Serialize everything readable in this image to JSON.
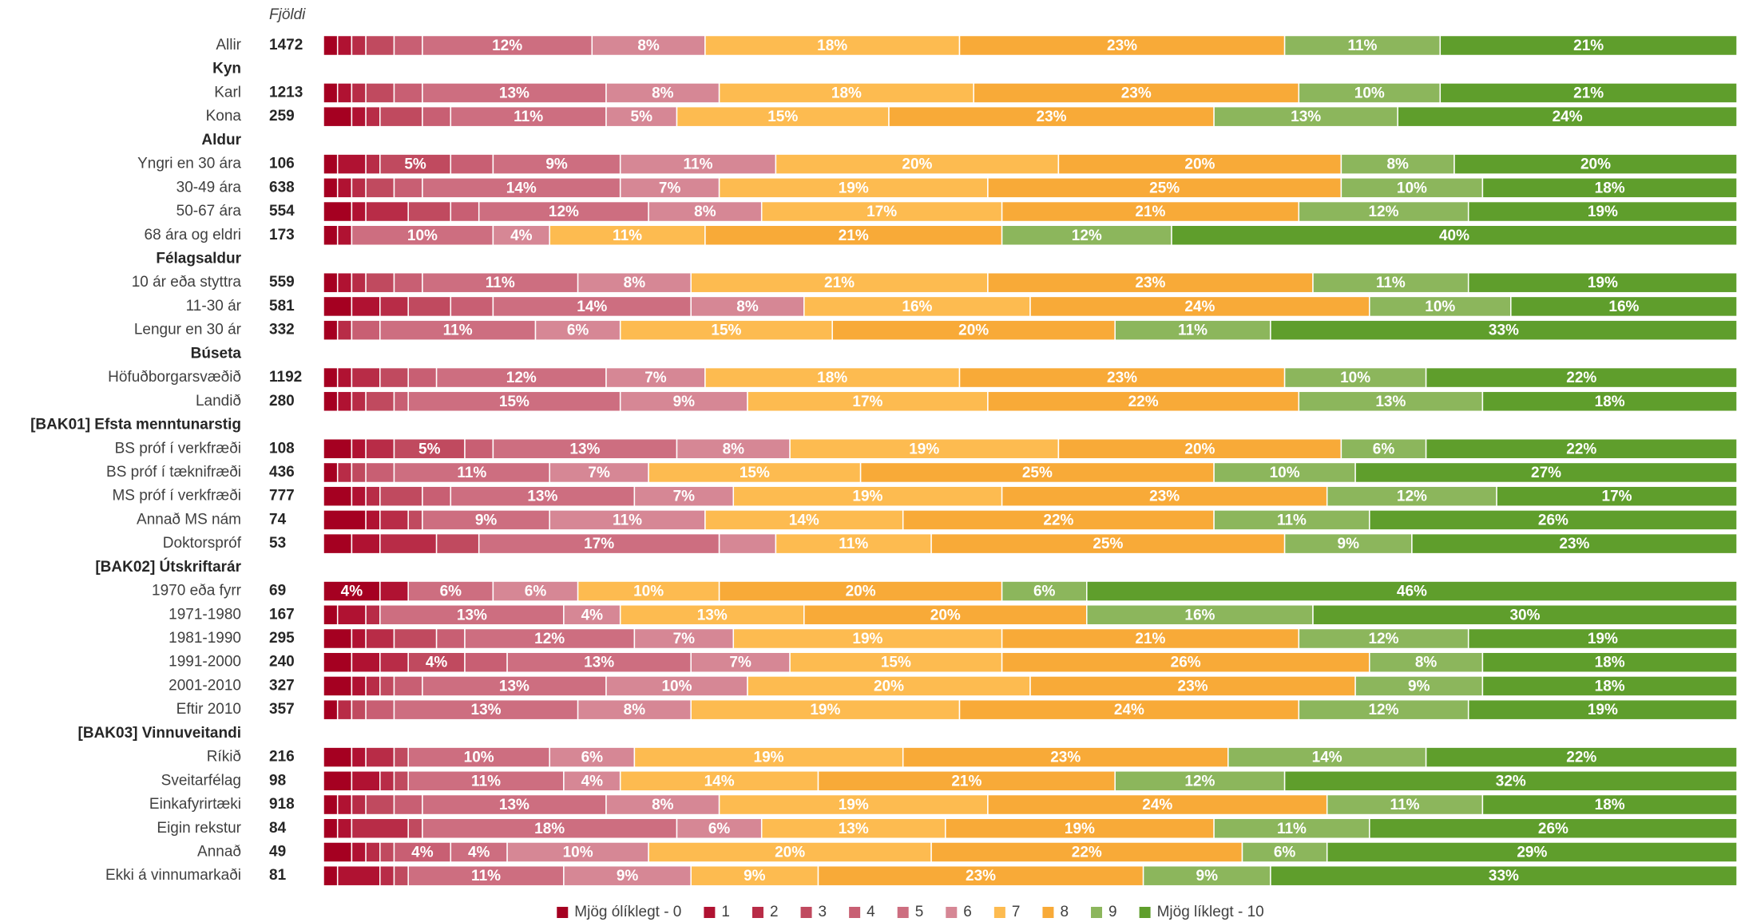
{
  "chart_data": {
    "type": "stacked-bar-horizontal",
    "count_header": "Fjöldi",
    "categories": [
      "Allir",
      "Kyn",
      "Karl",
      "Kona",
      "Aldur",
      "Yngri en 30 ára",
      "30-49 ára",
      "50-67 ára",
      "68 ára og eldri",
      "Félagsaldur",
      "10 ár eða styttra",
      "11-30 ár",
      "Lengur en 30 ár",
      "Búseta",
      "Höfuðborgarsvæðið",
      "Landið",
      "[BAK01] Efsta menntunarstig",
      "BS próf í verkfræði",
      "BS próf í tæknifræði",
      "MS próf í verkfræði",
      "Annað MS nám",
      "Doktorspróf",
      "[BAK02] Útskriftarár",
      "1970 eða fyrr",
      "1971-1980",
      "1981-1990",
      "1991-2000",
      "2001-2010",
      "Eftir 2010",
      "[BAK03] Vinnuveitandi",
      "Ríkið",
      "Sveitarfélag",
      "Einkafyrirtæki",
      "Eigin rekstur",
      "Annað",
      "Ekki á vinnumarkaði"
    ],
    "counts": [
      1472,
      null,
      1213,
      259,
      null,
      106,
      638,
      554,
      173,
      null,
      559,
      581,
      332,
      null,
      1192,
      280,
      null,
      108,
      436,
      777,
      74,
      53,
      null,
      69,
      167,
      295,
      240,
      327,
      357,
      null,
      216,
      98,
      918,
      84,
      49,
      81
    ],
    "series": [
      {
        "name": "Mjög ólíklegt - 0",
        "color": "#a50021",
        "values": [
          1,
          null,
          1,
          2,
          null,
          1,
          1,
          2,
          1,
          null,
          1,
          2,
          1,
          null,
          1,
          1,
          null,
          2,
          1,
          2,
          3,
          2,
          null,
          4,
          1,
          2,
          2,
          2,
          1,
          null,
          2,
          2,
          1,
          1,
          2,
          1
        ],
        "value_labels": [
          null,
          null,
          null,
          null,
          null,
          null,
          null,
          null,
          null,
          null,
          null,
          null,
          null,
          null,
          null,
          null,
          null,
          null,
          null,
          null,
          null,
          null,
          null,
          "4%",
          null,
          null,
          null,
          null,
          null,
          null,
          null,
          null,
          null,
          null,
          null,
          null
        ]
      },
      {
        "name": "1",
        "color": "#b01232",
        "values": [
          1,
          null,
          1,
          1,
          null,
          2,
          1,
          1,
          1,
          null,
          1,
          2,
          0,
          null,
          1,
          1,
          null,
          1,
          0,
          1,
          1,
          2,
          null,
          2,
          2,
          1,
          2,
          1,
          0,
          null,
          1,
          2,
          1,
          1,
          1,
          3
        ]
      },
      {
        "name": "2",
        "color": "#b82c47",
        "values": [
          1,
          null,
          1,
          1,
          null,
          1,
          1,
          3,
          0,
          null,
          1,
          2,
          1,
          null,
          2,
          1,
          null,
          2,
          1,
          1,
          2,
          4,
          null,
          0,
          1,
          2,
          2,
          1,
          1,
          null,
          2,
          1,
          1,
          4,
          1,
          1
        ]
      },
      {
        "name": "3",
        "color": "#c04a5f",
        "values": [
          2,
          null,
          2,
          3,
          null,
          5,
          2,
          3,
          0,
          null,
          2,
          3,
          0,
          null,
          2,
          2,
          null,
          5,
          1,
          3,
          1,
          3,
          null,
          0,
          0,
          3,
          4,
          1,
          1,
          null,
          1,
          1,
          2,
          1,
          1,
          1
        ],
        "value_labels": [
          null,
          null,
          null,
          null,
          null,
          "5%",
          null,
          null,
          null,
          null,
          null,
          null,
          null,
          null,
          null,
          null,
          null,
          "5%",
          null,
          null,
          null,
          null,
          null,
          null,
          null,
          null,
          "4%",
          null,
          null,
          null,
          null,
          null,
          null,
          null,
          null,
          null
        ]
      },
      {
        "name": "4",
        "color": "#c85f73",
        "values": [
          2,
          null,
          2,
          2,
          null,
          3,
          2,
          2,
          0,
          null,
          2,
          3,
          2,
          null,
          2,
          1,
          null,
          2,
          2,
          2,
          0,
          0,
          null,
          0,
          0,
          2,
          3,
          2,
          2,
          null,
          0,
          0,
          2,
          0,
          4,
          0
        ],
        "value_labels": [
          null,
          null,
          null,
          null,
          null,
          null,
          null,
          null,
          null,
          null,
          null,
          null,
          null,
          null,
          null,
          null,
          null,
          null,
          null,
          null,
          null,
          null,
          null,
          null,
          null,
          null,
          null,
          null,
          null,
          null,
          null,
          null,
          null,
          null,
          "4%",
          null
        ]
      },
      {
        "name": "5",
        "color": "#cd6e80",
        "values": [
          12,
          null,
          13,
          11,
          null,
          9,
          14,
          12,
          10,
          null,
          11,
          14,
          11,
          null,
          12,
          15,
          null,
          13,
          11,
          13,
          9,
          17,
          null,
          6,
          13,
          12,
          13,
          13,
          13,
          null,
          10,
          11,
          13,
          18,
          4,
          11
        ],
        "value_labels": [
          "12%",
          null,
          "13%",
          "11%",
          null,
          "9%",
          "14%",
          "12%",
          "10%",
          null,
          "11%",
          "14%",
          "11%",
          null,
          "12%",
          "15%",
          null,
          "13%",
          "11%",
          "13%",
          "9%",
          "17%",
          null,
          "6%",
          "13%",
          "12%",
          "13%",
          "13%",
          "13%",
          null,
          "10%",
          "11%",
          "13%",
          "18%",
          "4%",
          "11%"
        ]
      },
      {
        "name": "6",
        "color": "#d68795",
        "values": [
          8,
          null,
          8,
          5,
          null,
          11,
          7,
          8,
          4,
          null,
          8,
          8,
          6,
          null,
          7,
          9,
          null,
          8,
          7,
          7,
          11,
          4,
          null,
          6,
          4,
          7,
          7,
          10,
          8,
          null,
          6,
          4,
          8,
          6,
          10,
          9
        ],
        "value_labels": [
          "8%",
          null,
          "8%",
          "5%",
          null,
          "11%",
          "7%",
          "8%",
          "4%",
          null,
          "8%",
          "8%",
          "6%",
          null,
          "7%",
          "9%",
          null,
          "8%",
          "7%",
          "7%",
          "11%",
          null,
          null,
          "6%",
          "4%",
          "7%",
          "7%",
          "10%",
          "8%",
          null,
          "6%",
          "4%",
          "8%",
          "6%",
          "10%",
          "9%"
        ]
      },
      {
        "name": "7",
        "color": "#fdbb50",
        "values": [
          18,
          null,
          18,
          15,
          null,
          20,
          19,
          17,
          11,
          null,
          21,
          16,
          15,
          null,
          18,
          17,
          null,
          19,
          15,
          19,
          14,
          11,
          null,
          10,
          13,
          19,
          15,
          20,
          19,
          null,
          19,
          14,
          19,
          13,
          20,
          9
        ],
        "value_labels": [
          "18%",
          null,
          "18%",
          "15%",
          null,
          "20%",
          "19%",
          "17%",
          "11%",
          null,
          "21%",
          "16%",
          "15%",
          null,
          "18%",
          "17%",
          null,
          "19%",
          "15%",
          "19%",
          "14%",
          "11%",
          null,
          "10%",
          "13%",
          "19%",
          "15%",
          "20%",
          "19%",
          null,
          "19%",
          "14%",
          "19%",
          "13%",
          "20%",
          "9%"
        ]
      },
      {
        "name": "8",
        "color": "#f8aa38",
        "values": [
          23,
          null,
          23,
          23,
          null,
          20,
          25,
          21,
          21,
          null,
          23,
          24,
          20,
          null,
          23,
          22,
          null,
          20,
          25,
          23,
          22,
          25,
          null,
          20,
          20,
          21,
          26,
          23,
          24,
          null,
          23,
          21,
          24,
          19,
          22,
          23
        ],
        "value_labels": [
          "23%",
          null,
          "23%",
          "23%",
          null,
          "20%",
          "25%",
          "21%",
          "21%",
          null,
          "23%",
          "24%",
          "20%",
          null,
          "23%",
          "22%",
          null,
          "20%",
          "25%",
          "23%",
          "22%",
          "25%",
          null,
          "20%",
          "20%",
          "21%",
          "26%",
          "23%",
          "24%",
          null,
          "23%",
          "21%",
          "24%",
          "19%",
          "22%",
          "23%"
        ]
      },
      {
        "name": "9",
        "color": "#8cb65c",
        "values": [
          11,
          null,
          10,
          13,
          null,
          8,
          10,
          12,
          12,
          null,
          11,
          10,
          11,
          null,
          10,
          13,
          null,
          6,
          10,
          12,
          11,
          9,
          null,
          6,
          16,
          12,
          8,
          9,
          12,
          null,
          14,
          12,
          11,
          11,
          6,
          9
        ],
        "value_labels": [
          "11%",
          null,
          "10%",
          "13%",
          null,
          "8%",
          "10%",
          "12%",
          "12%",
          null,
          "11%",
          "10%",
          "11%",
          null,
          "10%",
          "13%",
          null,
          "6%",
          "10%",
          "12%",
          "11%",
          "9%",
          null,
          "6%",
          "16%",
          "12%",
          "8%",
          "9%",
          "12%",
          null,
          "14%",
          "12%",
          "11%",
          "11%",
          "6%",
          "9%"
        ]
      },
      {
        "name": "Mjög líklegt - 10",
        "color": "#5f9e2c",
        "values": [
          21,
          null,
          21,
          24,
          null,
          20,
          18,
          19,
          40,
          null,
          19,
          16,
          33,
          null,
          22,
          18,
          null,
          22,
          27,
          17,
          26,
          23,
          null,
          46,
          30,
          19,
          18,
          18,
          19,
          null,
          22,
          32,
          18,
          26,
          29,
          33
        ],
        "value_labels": [
          "21%",
          null,
          "21%",
          "24%",
          null,
          "20%",
          "18%",
          "19%",
          "40%",
          null,
          "19%",
          "16%",
          "33%",
          null,
          "22%",
          "18%",
          null,
          "22%",
          "27%",
          "17%",
          "26%",
          "23%",
          null,
          "46%",
          "30%",
          "19%",
          "18%",
          "18%",
          "19%",
          null,
          "22%",
          "32%",
          "18%",
          "26%",
          "29%",
          "33%"
        ]
      }
    ]
  }
}
